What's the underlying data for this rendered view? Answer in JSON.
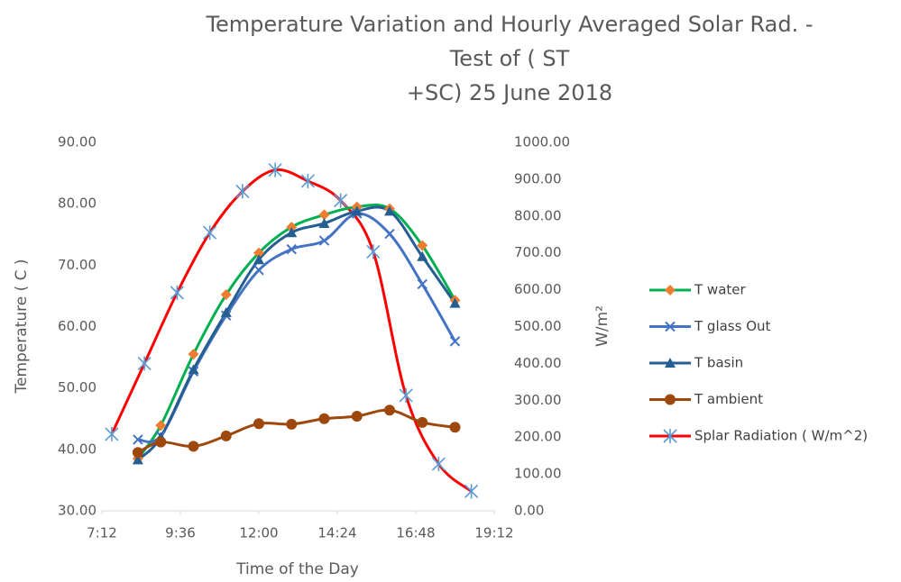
{
  "chart_data": {
    "type": "line",
    "title": [
      "Temperature Variation and Hourly Averaged Solar Rad. -",
      "Test of ( ST",
      "+SC) 25 June 2018"
    ],
    "x_label": "Time of the Day",
    "y_label": "Temperature ( C )",
    "y2_label": "W/m²",
    "xlim": [
      7.2,
      19.2
    ],
    "xticks": [
      {
        "value": 7.2,
        "label": "7:12"
      },
      {
        "value": 9.6,
        "label": "9:36"
      },
      {
        "value": 12,
        "label": "12:00"
      },
      {
        "value": 14.4,
        "label": "14:24"
      },
      {
        "value": 16.8,
        "label": "16:48"
      },
      {
        "value": 19.2,
        "label": "19:12"
      }
    ],
    "ylim": [
      30,
      90
    ],
    "yticks": [
      {
        "value": 30,
        "label": "30.00"
      },
      {
        "value": 40,
        "label": "40.00"
      },
      {
        "value": 50,
        "label": "50.00"
      },
      {
        "value": 60,
        "label": "60.00"
      },
      {
        "value": 70,
        "label": "70.00"
      },
      {
        "value": 80,
        "label": "80.00"
      },
      {
        "value": 90,
        "label": "90.00"
      }
    ],
    "y2lim": [
      0,
      1000
    ],
    "y2ticks": [
      {
        "value": 0,
        "label": "0.00"
      },
      {
        "value": 100,
        "label": "100.00"
      },
      {
        "value": 200,
        "label": "200.00"
      },
      {
        "value": 300,
        "label": "300.00"
      },
      {
        "value": 400,
        "label": "400.00"
      },
      {
        "value": 500,
        "label": "500.00"
      },
      {
        "value": 600,
        "label": "600.00"
      },
      {
        "value": 700,
        "label": "700.00"
      },
      {
        "value": 800,
        "label": "800.00"
      },
      {
        "value": 900,
        "label": "900.00"
      },
      {
        "value": 1000,
        "label": "1000.00"
      }
    ],
    "legend": "right",
    "series": [
      {
        "name": "T water",
        "color": "#00B050",
        "marker_color": "#ED7D31",
        "marker": "diamond",
        "x": [
          8.3,
          9,
          10,
          11,
          12,
          13,
          14,
          15,
          16,
          17,
          18
        ],
        "values": [
          38.5,
          43.9,
          55.5,
          65.2,
          72,
          76.2,
          78.2,
          79.5,
          79.2,
          73.2,
          64.3
        ]
      },
      {
        "name": "T glass Out",
        "color": "#4472C4",
        "marker_color": "#4472C4",
        "marker": "x",
        "x": [
          8.3,
          9,
          10,
          11,
          12,
          13,
          14,
          15,
          16,
          17,
          18
        ],
        "values": [
          41.6,
          42.2,
          52.7,
          61.8,
          69.2,
          72.6,
          74,
          78.4,
          75.1,
          66.9,
          57.6
        ]
      },
      {
        "name": "T basin",
        "color": "#255E91",
        "marker_color": "#255E91",
        "marker": "triangle",
        "x": [
          8.3,
          9,
          10,
          11,
          12,
          13,
          14,
          15,
          16,
          17,
          18
        ],
        "values": [
          38.3,
          42,
          53,
          62.3,
          70.9,
          75.3,
          76.8,
          78.8,
          78.8,
          71.4,
          63.8
        ]
      },
      {
        "name": "T ambient",
        "color": "#9E480E",
        "marker_color": "#9E480E",
        "marker": "circle",
        "x": [
          8.3,
          9,
          10,
          11,
          12,
          13,
          14,
          15,
          16,
          17,
          18
        ],
        "values": [
          39.5,
          41.2,
          40.5,
          42.2,
          44.2,
          44.1,
          45,
          45.4,
          46.4,
          44.4,
          43.6
        ]
      },
      {
        "name": "Splar Radiation ( W/m^2)",
        "color": "#FF0000",
        "marker_color": "#5B9BD5",
        "marker": "star",
        "axis": "y2",
        "x": [
          7.5,
          8.5,
          9.5,
          10.5,
          11.5,
          12.5,
          13.5,
          14.5,
          15.5,
          16.5,
          17.5,
          18.5
        ],
        "values": [
          208,
          400,
          592,
          755,
          867,
          925,
          895,
          842,
          703,
          313,
          127,
          53
        ]
      }
    ]
  }
}
